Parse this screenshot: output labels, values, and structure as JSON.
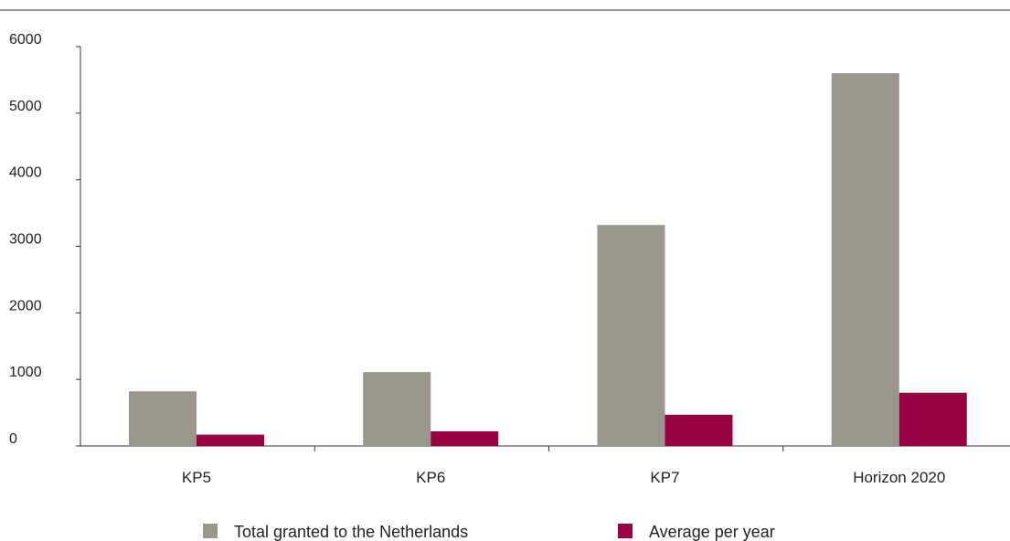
{
  "chart_data": {
    "type": "bar",
    "title": "",
    "xlabel": "",
    "ylabel": "",
    "categories": [
      "KP5",
      "KP6",
      "KP7",
      "Horizon 2020"
    ],
    "series": [
      {
        "name": "Total granted to the Netherlands",
        "color": "#9b968b",
        "values": [
          820,
          1110,
          3320,
          5600
        ]
      },
      {
        "name": "Average per year",
        "color": "#9c0044",
        "values": [
          170,
          220,
          470,
          800
        ]
      }
    ],
    "ylim": [
      0,
      6000
    ],
    "yticks": [
      0,
      1000,
      2000,
      3000,
      4000,
      5000,
      6000
    ],
    "grid": false,
    "legend_position": "bottom"
  }
}
